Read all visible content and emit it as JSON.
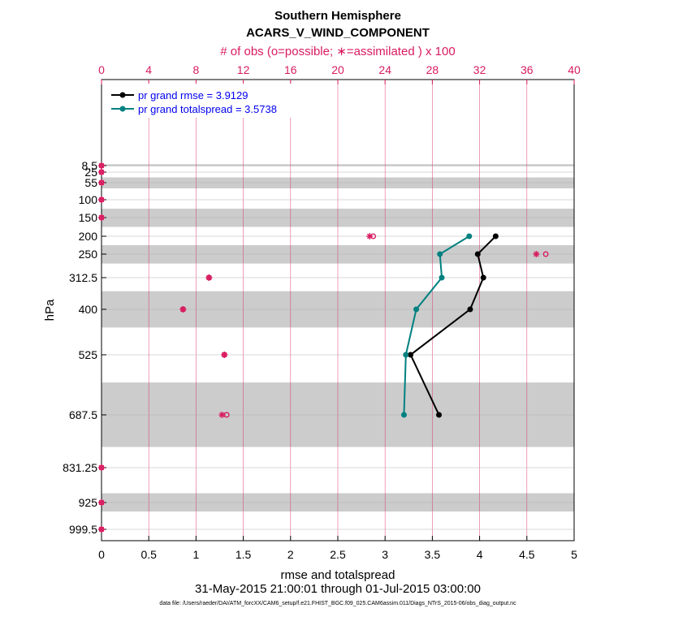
{
  "chart_data": {
    "type": "line",
    "title": "Southern Hemisphere",
    "subtitle": "ACARS_V_WIND_COMPONENT",
    "top_axis_label": "# of obs (o=possible; ∗=assimilated ) x 100",
    "xlabel": "rmse and totalspread",
    "ylabel": "hPa",
    "date_range": "31-May-2015 21:00:01 through 01-Jul-2015 03:00:00",
    "footnote": "data file: /Users/raeder/DAI/ATM_forcXX/CAM6_setup/f.e21.FHIST_BGC.f09_025.CAM6assim.011/Diags_NTrS_2015-06/obs_diag_output.nc",
    "xlim": [
      0,
      5
    ],
    "x_ticks": [
      "0",
      "0.5",
      "1",
      "1.5",
      "2",
      "2.5",
      "3",
      "3.5",
      "4",
      "4.5",
      "5"
    ],
    "top_xlim": [
      0,
      40
    ],
    "top_ticks": [
      "0",
      "4",
      "8",
      "12",
      "16",
      "20",
      "24",
      "28",
      "32",
      "36",
      "40"
    ],
    "y_reversed": true,
    "levels": [
      8.5,
      25,
      55,
      100,
      150,
      200,
      250,
      312.5,
      400,
      525,
      687.5,
      831.25,
      925,
      999.5
    ],
    "level_labels": [
      "8.5",
      "25",
      "55",
      "100",
      "150",
      "200",
      "250",
      "312.5",
      "400",
      "525",
      "687.5",
      "831.25",
      "925",
      "999.5"
    ],
    "shaded_bands": [
      [
        5,
        10
      ],
      [
        40,
        70
      ],
      [
        125,
        175
      ],
      [
        225,
        275
      ],
      [
        350,
        450
      ],
      [
        600,
        775
      ],
      [
        900,
        950
      ]
    ],
    "legend_placement": "top-left",
    "series": [
      {
        "name": "pr grand rmse = 3.9129",
        "color": "#000000",
        "levels": [
          200,
          250,
          312.5,
          400,
          525,
          687.5
        ],
        "values": [
          4.17,
          3.98,
          4.04,
          3.9,
          3.27,
          3.57
        ]
      },
      {
        "name": "pr grand totalspread = 3.5738",
        "color": "#008080",
        "levels": [
          200,
          250,
          312.5,
          400,
          525,
          687.5
        ],
        "values": [
          3.89,
          3.58,
          3.6,
          3.33,
          3.22,
          3.2
        ]
      }
    ],
    "obs_counts": {
      "color": "#d81b60",
      "levels": [
        8.5,
        25,
        55,
        100,
        150,
        200,
        250,
        312.5,
        400,
        525,
        687.5,
        831.25,
        925,
        999.5
      ],
      "possible_x100": [
        0,
        0,
        0,
        0,
        0,
        23.0,
        37.6,
        9.1,
        6.9,
        10.4,
        10.6,
        0,
        0,
        0
      ],
      "assimilated_x100": [
        0,
        0,
        0,
        0,
        0,
        22.7,
        36.8,
        9.1,
        6.9,
        10.4,
        10.2,
        0,
        0,
        0
      ]
    }
  }
}
